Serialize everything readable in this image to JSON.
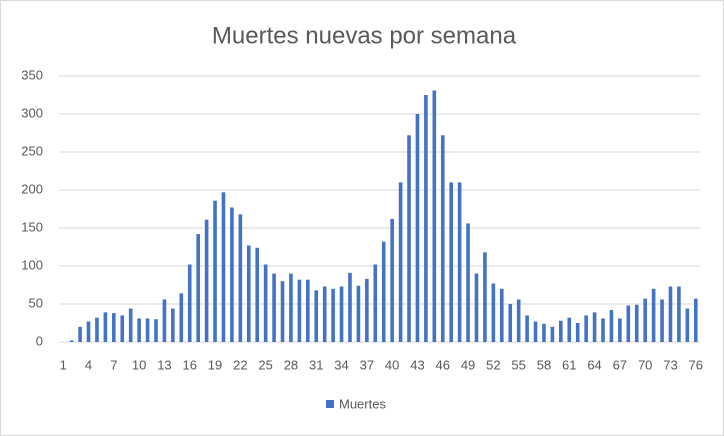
{
  "chart_data": {
    "type": "bar",
    "title": "Muertes nuevas por semana",
    "categories": [
      "1",
      null,
      null,
      "4",
      null,
      null,
      "7",
      null,
      null,
      "10",
      null,
      null,
      "13",
      null,
      null,
      "16",
      null,
      null,
      "19",
      null,
      null,
      "22",
      null,
      null,
      "25",
      null,
      null,
      "28",
      null,
      null,
      "31",
      null,
      null,
      "34",
      null,
      null,
      "37",
      null,
      null,
      "40",
      null,
      null,
      "43",
      null,
      null,
      "46",
      null,
      null,
      "49",
      null,
      null,
      "52",
      null,
      null,
      "55",
      null,
      null,
      "58",
      null,
      null,
      "61",
      null,
      null,
      "64",
      null,
      null,
      "67",
      null,
      null,
      "70",
      null,
      null,
      "73",
      null,
      null,
      "76"
    ],
    "series": [
      {
        "name": "Muertes",
        "color": "#4472c4",
        "values": [
          0,
          2,
          20,
          27,
          32,
          39,
          38,
          35,
          44,
          31,
          31,
          30,
          56,
          44,
          64,
          102,
          142,
          161,
          186,
          197,
          177,
          168,
          127,
          124,
          102,
          90,
          80,
          90,
          82,
          82,
          68,
          73,
          70,
          73,
          91,
          74,
          83,
          102,
          132,
          162,
          210,
          272,
          300,
          325,
          331,
          272,
          210,
          210,
          156,
          90,
          118,
          77,
          70,
          50,
          56,
          35,
          27,
          24,
          20,
          28,
          32,
          25,
          35,
          39,
          31,
          42,
          31,
          48,
          49,
          57,
          70,
          56,
          73,
          73,
          44,
          57
        ]
      }
    ],
    "ylim": [
      0,
      350
    ],
    "yticks": [
      0,
      50,
      100,
      150,
      200,
      250,
      300,
      350
    ],
    "grid": true,
    "legend": "bottom"
  }
}
